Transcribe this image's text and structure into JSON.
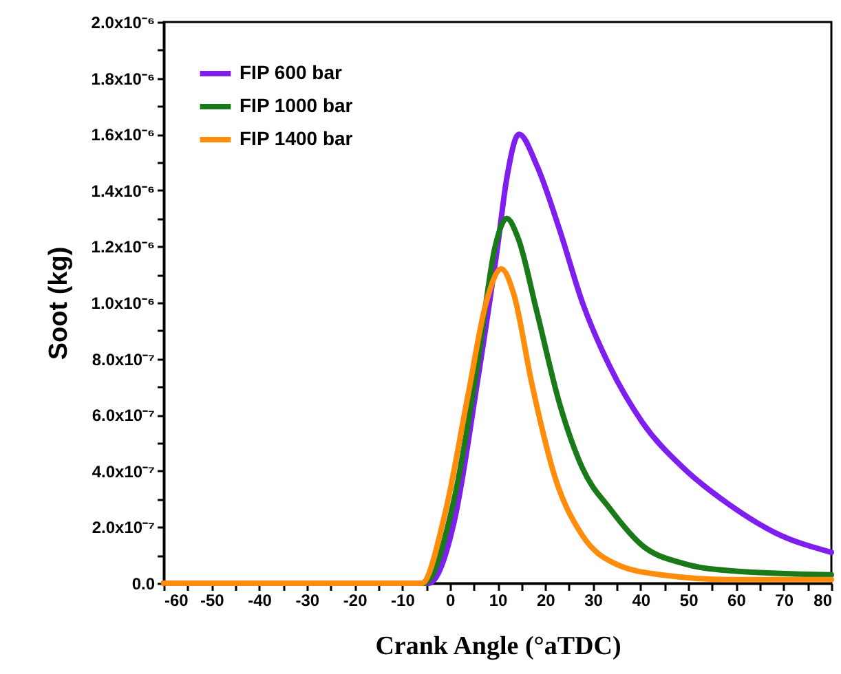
{
  "chart_data": {
    "type": "line",
    "xlabel": "Crank Angle (°aTDC)",
    "ylabel": "Soot (kg)",
    "xlim": [
      -60,
      80
    ],
    "ylim": [
      0,
      2e-06
    ],
    "xticks": [
      -60,
      {
        "value": -55,
        "label": null
      },
      -50,
      {
        "value": -45,
        "label": null
      },
      -40,
      {
        "value": -35,
        "label": null
      },
      -30,
      {
        "value": -25,
        "label": null
      },
      -20,
      {
        "value": -15,
        "label": null
      },
      -10,
      {
        "value": -5,
        "label": null
      },
      0,
      {
        "value": 5,
        "label": null
      },
      10,
      {
        "value": 15,
        "label": null
      },
      20,
      {
        "value": 25,
        "label": null
      },
      30,
      {
        "value": 35,
        "label": null
      },
      40,
      {
        "value": 45,
        "label": null
      },
      50,
      {
        "value": 55,
        "label": null
      },
      60,
      {
        "value": 65,
        "label": null
      },
      70,
      {
        "value": 75,
        "label": null
      },
      80
    ],
    "yticks": [
      {
        "value": 0,
        "label": "0.0"
      },
      {
        "value": 1e-07,
        "label": null
      },
      {
        "value": 2e-07,
        "label": "2.0x10⁻⁷"
      },
      {
        "value": 3e-07,
        "label": null
      },
      {
        "value": 4e-07,
        "label": "4.0x10⁻⁷"
      },
      {
        "value": 5e-07,
        "label": null
      },
      {
        "value": 6e-07,
        "label": "6.0x10⁻⁷"
      },
      {
        "value": 7e-07,
        "label": null
      },
      {
        "value": 8e-07,
        "label": "8.0x10⁻⁷"
      },
      {
        "value": 9e-07,
        "label": null
      },
      {
        "value": 1e-06,
        "label": "1.0x10⁻⁶"
      },
      {
        "value": 1.1e-06,
        "label": null
      },
      {
        "value": 1.2e-06,
        "label": "1.2x10⁻⁶"
      },
      {
        "value": 1.3e-06,
        "label": null
      },
      {
        "value": 1.4e-06,
        "label": "1.4x10⁻⁶"
      },
      {
        "value": 1.5e-06,
        "label": null
      },
      {
        "value": 1.6e-06,
        "label": "1.6x10⁻⁶"
      },
      {
        "value": 1.7e-06,
        "label": null
      },
      {
        "value": 1.8e-06,
        "label": "1.8x10⁻⁶"
      },
      {
        "value": 1.9e-06,
        "label": null
      },
      {
        "value": 2e-06,
        "label": "2.0x10⁻⁶"
      }
    ],
    "grid": false,
    "legend": "top left",
    "marker": "none",
    "line_style": "solid",
    "series": [
      {
        "name": "FIP 600  bar",
        "color": "#7f1fef",
        "x": [
          -60,
          -5,
          -4.4,
          0.9,
          5.7,
          10.0,
          11.9,
          14.5,
          18.2,
          23.0,
          27.8,
          33.6,
          40.3,
          49.0,
          58.6,
          68.2,
          80
        ],
        "values": [
          0,
          0,
          0,
          2.2e-07,
          7.1e-07,
          1.2e-06,
          1.44e-06,
          1.6e-06,
          1.49e-06,
          1.26e-06,
          1e-06,
          7.7e-07,
          5.75e-07,
          4.1e-07,
          2.8e-07,
          1.8e-07,
          1.1e-07
        ]
      },
      {
        "name": "FIP 1000 bar",
        "color": "#1a7a1a",
        "x": [
          -60,
          -5.4,
          0.9,
          5.7,
          9.5,
          11.9,
          14.3,
          18.2,
          23.0,
          27.8,
          33.6,
          40.3,
          49.0,
          58.6,
          80
        ],
        "values": [
          0,
          0,
          3e-07,
          7.7e-07,
          1.2e-06,
          1.3e-06,
          1.23e-06,
          9.7e-07,
          6.4e-07,
          4.1e-07,
          2.65e-07,
          1.35e-07,
          7e-08,
          4.5e-08,
          3e-08
        ]
      },
      {
        "name": "FIP 1400 bar",
        "color": "#ff8c0a",
        "x": [
          -60,
          -5.9,
          -1.0,
          3.8,
          7.6,
          10.8,
          13.4,
          17.2,
          22.0,
          27.8,
          34.6,
          44.2,
          58.6,
          80
        ],
        "values": [
          0,
          0,
          2.5e-07,
          6.7e-07,
          1e-06,
          1.12e-06,
          1.03e-06,
          7.1e-07,
          3.8e-07,
          1.7e-07,
          7e-08,
          3e-08,
          1.3e-08,
          1.3e-08
        ]
      }
    ]
  }
}
